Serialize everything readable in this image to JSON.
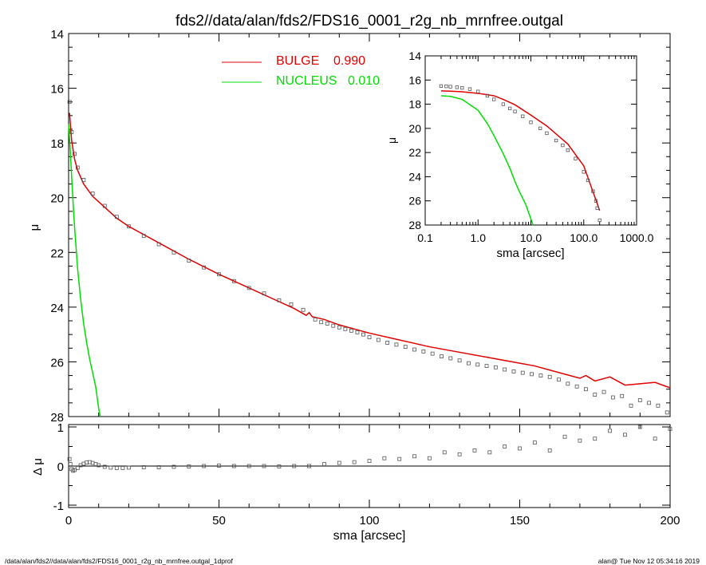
{
  "title": "fds2//data/alan/fds2/FDS16_0001_r2g_nb_mrnfree.outgal",
  "footer_left": "/data/alan/fds2//data/alan/fds2/FDS16_0001_r2g_nb_mrnfree.outgal_1dprof",
  "footer_right": "alan@  Tue Nov 12 05:34:16 2019",
  "colors": {
    "bulge": "#e00000",
    "nucleus": "#00dd00",
    "data": "#555555",
    "axes": "#000000"
  },
  "chart_data": [
    {
      "id": "main",
      "type": "scatter",
      "xlabel": "sma [arcsec]",
      "ylabel": "μ",
      "xlim": [
        0,
        200
      ],
      "ylim": [
        28,
        14
      ],
      "xticks": [
        "0",
        "50",
        "100",
        "150",
        "200"
      ],
      "yticks": [
        "14",
        "16",
        "18",
        "20",
        "22",
        "24",
        "26",
        "28"
      ],
      "legend": [
        {
          "label": "BULGE",
          "value": "0.990",
          "color": "#e00000"
        },
        {
          "label": "NUCLEUS",
          "value": "0.010",
          "color": "#00dd00"
        }
      ],
      "series": [
        {
          "name": "BULGE",
          "kind": "line",
          "x": [
            0.3,
            1,
            2,
            3,
            5,
            8,
            12,
            16,
            20,
            25,
            30,
            40,
            50,
            60,
            70,
            75,
            79,
            80,
            81,
            85,
            90,
            100,
            110,
            120,
            130,
            140,
            150,
            155,
            160,
            165,
            170,
            172,
            175,
            180,
            185,
            190,
            195,
            200
          ],
          "y": [
            16.9,
            17.9,
            18.6,
            19.0,
            19.5,
            19.95,
            20.35,
            20.75,
            21.05,
            21.35,
            21.65,
            22.25,
            22.8,
            23.3,
            23.8,
            24.05,
            24.3,
            24.2,
            24.35,
            24.45,
            24.65,
            24.95,
            25.2,
            25.45,
            25.65,
            25.85,
            26.05,
            26.15,
            26.3,
            26.45,
            26.6,
            26.5,
            26.7,
            26.55,
            26.85,
            26.8,
            26.75,
            26.95
          ]
        },
        {
          "name": "NUCLEUS",
          "kind": "line",
          "x": [
            0,
            0.5,
            1,
            1.5,
            2,
            3,
            4,
            5,
            6,
            7,
            8,
            9,
            10,
            10.5
          ],
          "y": [
            17.3,
            18.2,
            19.2,
            20.2,
            21.1,
            22.6,
            23.7,
            24.6,
            25.3,
            25.9,
            26.4,
            26.9,
            27.7,
            28.0
          ]
        },
        {
          "name": "data",
          "kind": "points",
          "x": [
            0.3,
            1,
            2,
            3,
            5,
            8,
            12,
            16,
            20,
            25,
            30,
            35,
            40,
            45,
            50,
            55,
            60,
            65,
            70,
            74,
            78,
            82,
            84,
            86,
            88,
            90,
            92,
            94,
            96,
            98,
            100,
            103,
            106,
            109,
            112,
            115,
            118,
            121,
            124,
            127,
            130,
            133,
            136,
            139,
            142,
            145,
            148,
            151,
            154,
            157,
            160,
            163,
            166,
            169,
            172,
            175,
            178,
            181,
            184,
            187,
            190,
            193,
            196,
            199
          ],
          "y": [
            16.5,
            17.6,
            18.4,
            18.9,
            19.35,
            19.85,
            20.3,
            20.7,
            21.05,
            21.4,
            21.7,
            22.0,
            22.3,
            22.55,
            22.8,
            23.05,
            23.3,
            23.5,
            23.75,
            23.9,
            24.1,
            24.45,
            24.55,
            24.6,
            24.68,
            24.74,
            24.8,
            24.86,
            24.92,
            25.0,
            25.1,
            25.2,
            25.3,
            25.37,
            25.45,
            25.55,
            25.62,
            25.7,
            25.8,
            25.87,
            25.95,
            26.05,
            26.1,
            26.15,
            26.2,
            26.28,
            26.35,
            26.4,
            26.45,
            26.5,
            26.55,
            26.65,
            26.8,
            26.9,
            27.0,
            27.2,
            27.1,
            27.3,
            27.25,
            27.6,
            27.4,
            27.5,
            27.6,
            27.85
          ]
        }
      ]
    },
    {
      "id": "residual",
      "type": "scatter",
      "xlabel": "sma [arcsec]",
      "ylabel": "Δ μ",
      "xlim": [
        0,
        200
      ],
      "ylim": [
        -1,
        1
      ],
      "yticks": [
        "-1",
        "0",
        "1"
      ],
      "series": [
        {
          "name": "residual",
          "kind": "points",
          "x": [
            0.3,
            0.6,
            1,
            1.5,
            2,
            3,
            4,
            5,
            6,
            7,
            8,
            9,
            10,
            12,
            14,
            16,
            18,
            20,
            25,
            30,
            35,
            40,
            45,
            50,
            55,
            60,
            65,
            70,
            75,
            80,
            85,
            90,
            95,
            100,
            105,
            110,
            115,
            120,
            125,
            130,
            135,
            140,
            145,
            150,
            155,
            160,
            165,
            170,
            175,
            180,
            185,
            190,
            195,
            200
          ],
          "y": [
            0.18,
            0.05,
            -0.08,
            -0.12,
            -0.1,
            -0.05,
            0.02,
            0.06,
            0.09,
            0.1,
            0.08,
            0.05,
            0.02,
            -0.02,
            -0.04,
            -0.05,
            -0.05,
            -0.04,
            -0.03,
            -0.03,
            -0.02,
            -0.01,
            0.0,
            0.01,
            0.0,
            0.0,
            0.0,
            -0.01,
            0.0,
            0.0,
            0.05,
            0.08,
            0.1,
            0.13,
            0.2,
            0.18,
            0.25,
            0.2,
            0.35,
            0.3,
            0.4,
            0.35,
            0.5,
            0.45,
            0.6,
            0.4,
            0.75,
            0.65,
            0.7,
            0.9,
            0.8,
            1.0,
            0.7,
            0.95
          ]
        }
      ]
    },
    {
      "id": "inset",
      "type": "scatter",
      "xlabel": "sma [arcsec]",
      "ylabel": "μ",
      "xscale": "log",
      "xlim": [
        0.1,
        1000
      ],
      "ylim": [
        28,
        14
      ],
      "xticks": [
        "0.1",
        "1.0",
        "10.0",
        "100.0",
        "1000.0"
      ],
      "yticks": [
        "14",
        "16",
        "18",
        "20",
        "22",
        "24",
        "26",
        "28"
      ],
      "series": [
        {
          "name": "BULGE",
          "kind": "line",
          "x": [
            0.2,
            0.3,
            0.5,
            1,
            2,
            3,
            5,
            10,
            20,
            50,
            100,
            200
          ],
          "y": [
            16.9,
            16.92,
            16.97,
            17.1,
            17.3,
            17.6,
            18.05,
            18.9,
            19.8,
            21.3,
            23.1,
            26.8
          ]
        },
        {
          "name": "NUCLEUS",
          "kind": "line",
          "x": [
            0.2,
            0.3,
            0.5,
            1,
            1.5,
            2,
            3,
            4,
            5,
            6,
            8,
            10,
            11
          ],
          "y": [
            17.3,
            17.35,
            17.6,
            18.5,
            19.6,
            20.6,
            22.1,
            23.3,
            24.4,
            25.2,
            26.3,
            27.5,
            28.0
          ]
        },
        {
          "name": "data",
          "kind": "points",
          "x": [
            0.2,
            0.25,
            0.3,
            0.4,
            0.5,
            0.7,
            1,
            1.5,
            2,
            3,
            4,
            5,
            7,
            10,
            15,
            20,
            30,
            40,
            50,
            70,
            100,
            120,
            150,
            170,
            180,
            200
          ],
          "y": [
            16.5,
            16.52,
            16.55,
            16.6,
            16.65,
            16.75,
            16.95,
            17.3,
            17.6,
            18.0,
            18.35,
            18.6,
            19.0,
            19.5,
            20.0,
            20.4,
            21.0,
            21.4,
            21.8,
            22.5,
            23.6,
            24.3,
            25.2,
            26.0,
            26.6,
            27.6
          ]
        }
      ]
    }
  ]
}
